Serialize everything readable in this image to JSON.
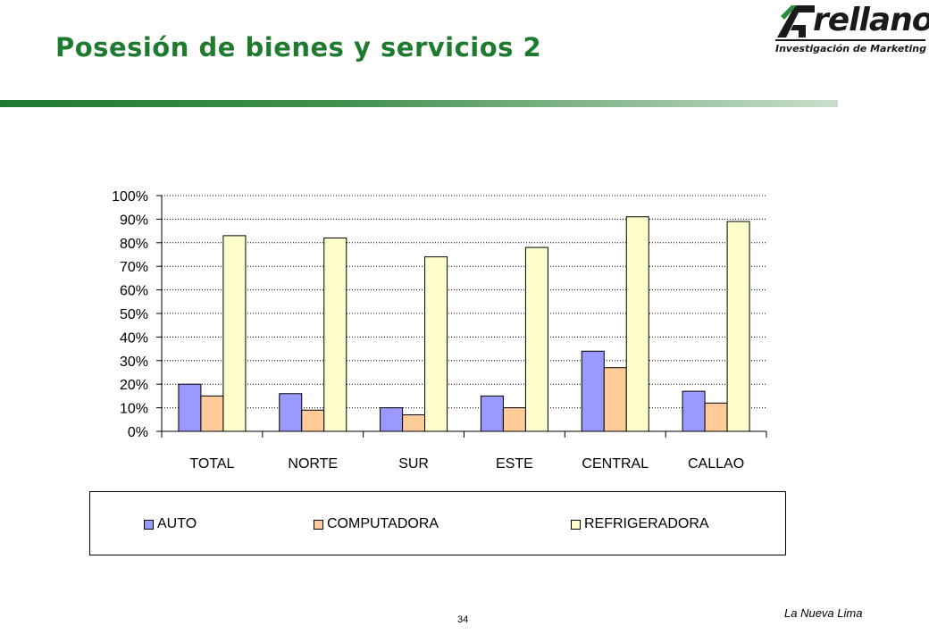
{
  "header": {
    "title": "Posesión de bienes y servicios 2",
    "logo_word": "rellano",
    "logo_tagline": "Investigación de Marketing"
  },
  "chart_data": {
    "type": "bar",
    "title": "",
    "xlabel": "",
    "ylabel": "",
    "categories": [
      "TOTAL",
      "NORTE",
      "SUR",
      "ESTE",
      "CENTRAL",
      "CALLAO"
    ],
    "series": [
      {
        "name": "AUTO",
        "color": "#9999ff",
        "values": [
          20,
          16,
          10,
          15,
          34,
          17
        ]
      },
      {
        "name": "COMPUTADORA",
        "color": "#ffcc99",
        "values": [
          15,
          9,
          7,
          10,
          27,
          12
        ]
      },
      {
        "name": "REFRIGERADORA",
        "color": "#ffffcc",
        "values": [
          83,
          82,
          74,
          78,
          91,
          89
        ]
      }
    ],
    "y_ticks": [
      "0%",
      "10%",
      "20%",
      "30%",
      "40%",
      "50%",
      "60%",
      "70%",
      "80%",
      "90%",
      "100%"
    ],
    "ylim": [
      0,
      100
    ],
    "grid": true,
    "legend_position": "bottom"
  },
  "footer": {
    "page_number": "34",
    "caption": "La Nueva Lima"
  }
}
